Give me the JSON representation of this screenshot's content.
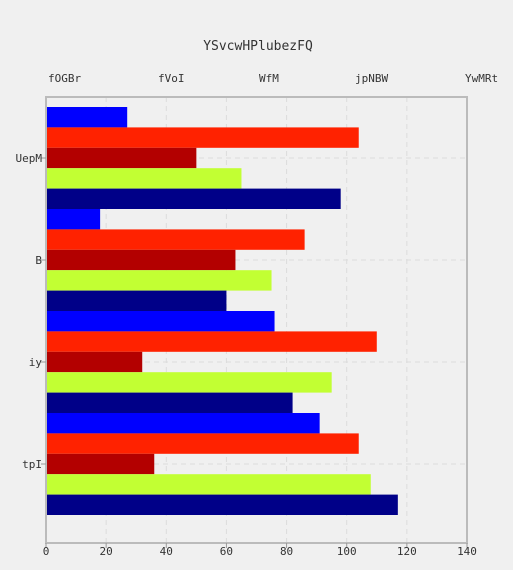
{
  "chart_data": {
    "type": "bar",
    "orientation": "horizontal",
    "title": "YSvcwHPlubezFQ",
    "xlabel": "",
    "ylabel": "",
    "xlim": [
      0,
      140
    ],
    "xticks": [
      0,
      20,
      40,
      60,
      80,
      100,
      120,
      140
    ],
    "grid": true,
    "legend_placement": "top",
    "categories": [
      "UepM",
      "B",
      "iy",
      "tpI"
    ],
    "series": [
      {
        "name": "fOGBr",
        "color": "#0000ff",
        "values": [
          27,
          18,
          76,
          91
        ]
      },
      {
        "name": "fVoI",
        "color": "#ff2200",
        "values": [
          104,
          86,
          110,
          104
        ]
      },
      {
        "name": "WfM",
        "color": "#b30000",
        "values": [
          50,
          63,
          32,
          36
        ]
      },
      {
        "name": "jpNBW",
        "color": "#c2ff33",
        "values": [
          65,
          75,
          95,
          108
        ]
      },
      {
        "name": "YwMRt",
        "color": "#000088",
        "values": [
          98,
          60,
          82,
          117
        ]
      }
    ]
  }
}
